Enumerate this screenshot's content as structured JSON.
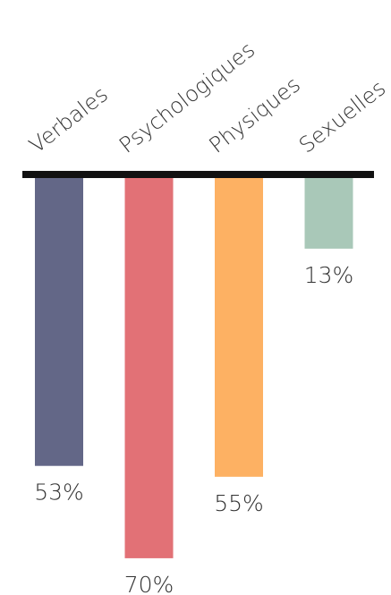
{
  "chart_data": {
    "type": "bar",
    "categories": [
      "Verbales",
      "Psychologiques",
      "Physiques",
      "Sexuelles"
    ],
    "values": [
      53,
      70,
      55,
      13
    ],
    "value_labels": [
      "53%",
      "70%",
      "55%",
      "13%"
    ],
    "colors": [
      "#636787",
      "#e27176",
      "#fdb163",
      "#a9c8b8"
    ]
  }
}
